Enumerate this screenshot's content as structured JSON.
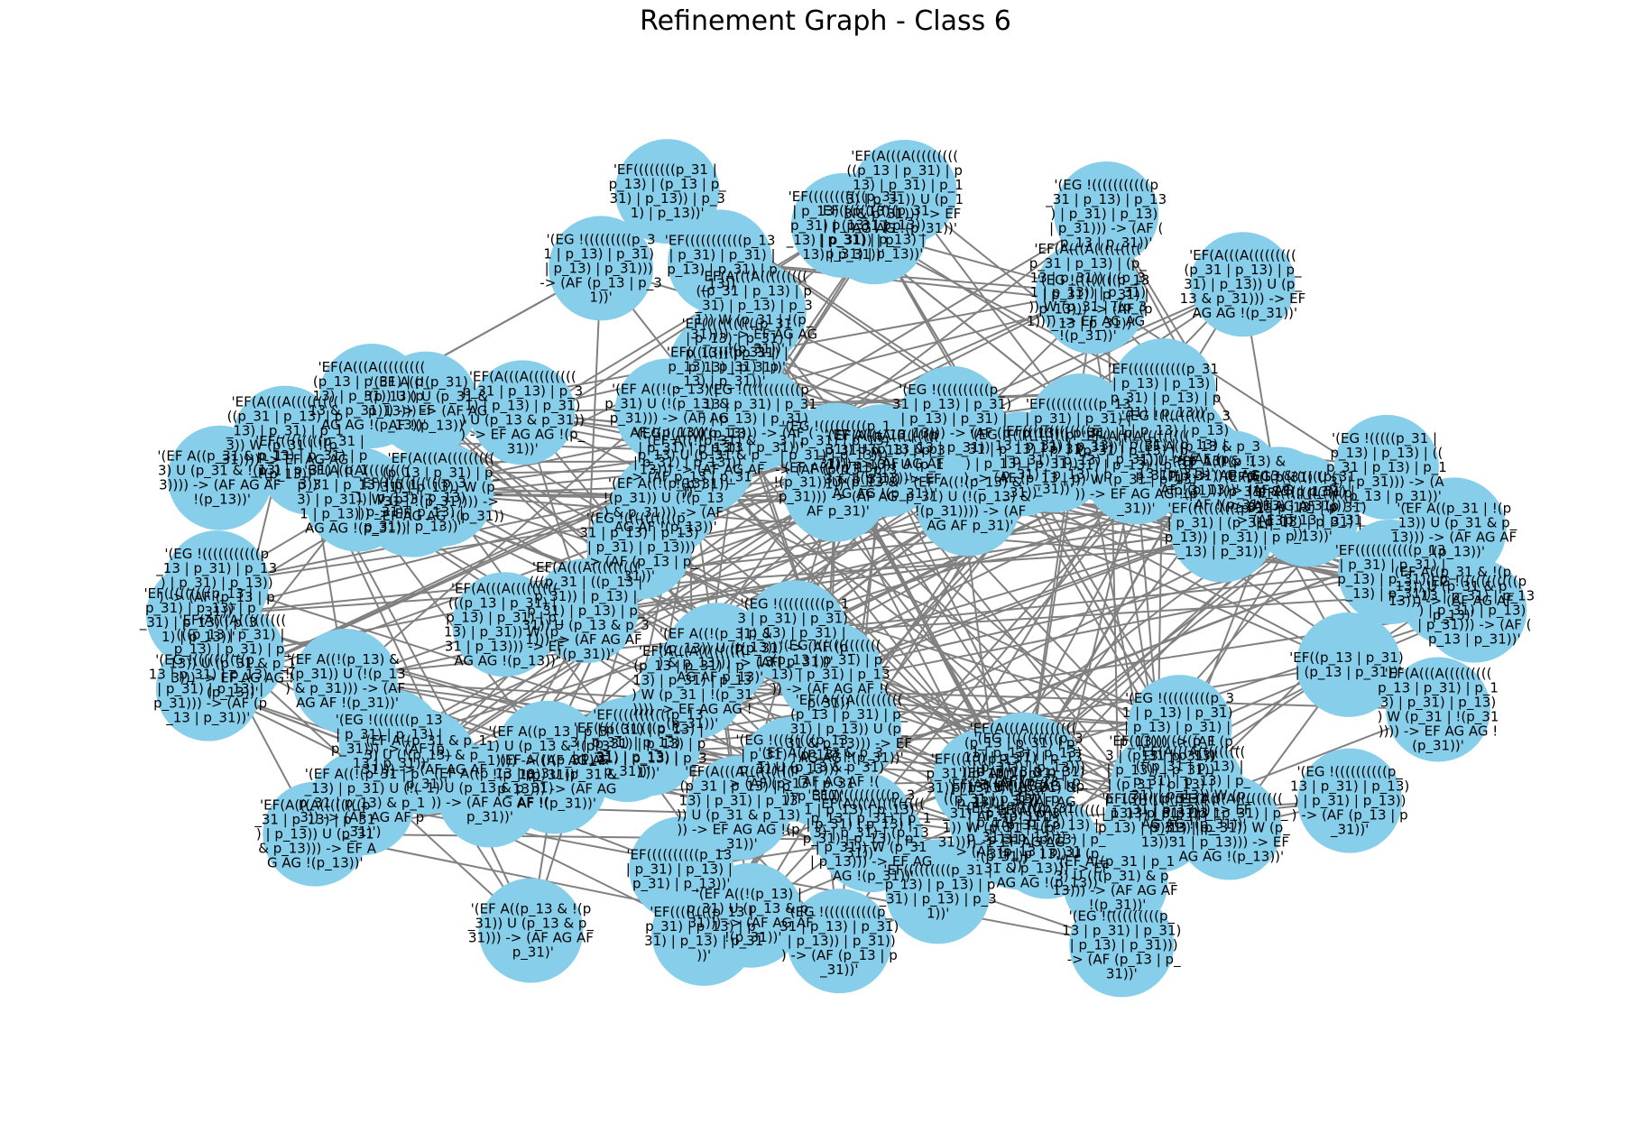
{
  "figure": {
    "title": "Refinement Graph - Class 6"
  },
  "colors": {
    "node_fill": "#87ceeb",
    "edge": "#808080",
    "label": "#000000",
    "background": "#ffffff"
  },
  "graph": {
    "directed": true,
    "nodes": [
      {
        "id": "n1",
        "label": "'EF((p_13 | p_31) | (p_13 | p_31))'"
      },
      {
        "id": "n2",
        "label": "'(EG !(((((p_31 | p_13) | p_13) | ((p_31 | p_13) | p_13) | p_31))) -> (AF (p_13 | p_31))'"
      },
      {
        "id": "n3",
        "label": "'(EF A((!(p_31 | p_13) | p_31) U (!(p_31 | p_13) & p_13)) -> (AF AG AF p_31)')"
      },
      {
        "id": "n4",
        "label": "'EF(A(((A(((((((((p_31 | p_13) | (p_13 | p_31)) | (p_31 | p_13)) | p_31))) W (p_31 | !(p_31)))) -> EF AG AG !(p_31))'"
      },
      {
        "id": "n5",
        "label": "'EF((((((((((((p_13 | (p_31 | p_13) | p_13)) | p_31)) | (p_31 | p_13) | p_13)) | p_31) | p_13) | p_31) | p_13))'"
      },
      {
        "id": "n6",
        "label": "'(EG !(((((((((((((p_13 | p_31) | p_13) | p_31) | p_13)) -> (AF AG AF !(p_31))'"
      },
      {
        "id": "n7",
        "label": "'EF(A(((A((((((((((((p_31 | ((p_13 | p_31)) | p_13) | p_31) | p_13) | p_31)) U (p_13 & p_31))) -> (AF AG AF !(p_31))'"
      },
      {
        "id": "n8",
        "label": "'(EF A(!(p_31) U (!(p_31) & !(p_13))) -> (AF AG AF !(p_13))'"
      },
      {
        "id": "n9",
        "label": "'EF(((((((p_13 | (p_31 | p_13)) | p_31)) | p_13) | p_31))'"
      },
      {
        "id": "n10",
        "label": "'(EF A((p_13 & p_31) U (p_13 & p_31))) -> (AF AG AF !(p_31))'"
      },
      {
        "id": "n11",
        "label": "'EF(A(((A(((((((((p_13 | p_31) | p_13) | p_31) | (p_13 | p_31)) W (p_31 | p_13))) -> EF AG AG !(p_31))'"
      },
      {
        "id": "n12",
        "label": "'(EG !((((((((p_13 | p_31) | p_13)) | p_31) | p_13))) -> (AF p_13 | p_31))'"
      },
      {
        "id": "n13",
        "label": "'EF(((((((((((p_31 | p_13) | p_13) | p_31) | (p_31 | p_13) | p_31)) | p_13) | p_31))'"
      },
      {
        "id": "n14",
        "label": "'(EF A((!(p_13) & !(p_31)) U (p_13 & p_31))) -> (AF AG AF !(p_31))'"
      },
      {
        "id": "n15",
        "label": "'EF(A(((A((((((((p_31 | p_13) | p_31) | p_13)) U (p_31 & p_13))) -> EF AG AG !(p_13))'"
      },
      {
        "id": "n16",
        "label": "'(EG !(((((((((p_31 | p_13) | p_13) | p_31)) | p_13))) -> (AF (p_13 | p_31))'"
      },
      {
        "id": "n17",
        "label": "'EF((((((((p_31 | p_13) | (p_13 | p_31) | p_13)) | p_31) | p_13))'"
      },
      {
        "id": "n18",
        "label": "'(EF A((!(p_13) | p_31) U (!(p_13) & p_31))) -> (AF AG AF !(p_13))'"
      },
      {
        "id": "n19",
        "label": "'EF(A(((A((((((((((p_13 | p_31) | p_13) | p_31) | p_13) W (p_31 | !(p_31)))) -> EF AG AG !(p_31))'"
      },
      {
        "id": "n20",
        "label": "'(EG !(((((((p_13 | p_31) | p_13) | p_31))) -> (AF (p_13 | p_31))'"
      },
      {
        "id": "n21",
        "label": "'EF(((((((((((p_13 | p_31) | p_13) | p_31) | p_13) | p_31) | p_13) | p_31))'"
      },
      {
        "id": "n22",
        "label": "'(EF A((p_31 & p_13) U (!(p_13) & p_31))) -> (AF AG AF p_31)'"
      },
      {
        "id": "n23",
        "label": "'EF(A(((A(((((((((p_31 | p_13) | p_31) | p_13) | p_31)) U (p_13 & p_31))) -> EF AG AG !(p_31))'"
      },
      {
        "id": "n24",
        "label": "'(EG !((((((((((p_31 | p_13) | p_31) | p_13)) | p_31))) -> (AF (p_13 | p_31))'"
      },
      {
        "id": "n25",
        "label": "'EF(((((((((((p_31 | p_13) | p_31) | p_13)) | p_31) | p_13) | p_31))'"
      },
      {
        "id": "n26",
        "label": "'(EF A((!(p_31) & !(p_13)) U (p_31 & p_13))) -> (AF AG AF !(p_31))'"
      },
      {
        "id": "n27",
        "label": "'EF(A(((A((((((((((p_13 | p_31) | p_13) | p_31)) W (p_31 | p_13))) -> EF AG AG !(p_13))'"
      },
      {
        "id": "n28",
        "label": "'(EG !(((((((((p_13 | p_31) | p_13) | p_31) | p_13))) -> (AF (p_13 | p_31))'"
      },
      {
        "id": "n29",
        "label": "'EF(((((((((p_13 | p_31) | p_13) | p_31) | p_13) | p_31) | p_13))'"
      },
      {
        "id": "n30",
        "label": "'(EF A((p_13 | p_31) U (p_13 & !(p_31)))) -> (AF AG AF !(p_31))'"
      },
      {
        "id": "n31",
        "label": "'EF(A(((A(((((((((((p_31 | p_13) | p_31) | p_13) | p_31)) W (p_31 | !(p_31)))) -> EF AG AG !(p_31))'"
      },
      {
        "id": "n32",
        "label": "'(EG !((((((((p_31 | p_13) | p_13) | p_31) | p_13))) -> (AF (p_13 | p_31))'"
      },
      {
        "id": "n33",
        "label": "'EF((((((((((p_13 | p_31) | (p_31 | p_13)) | p_31) | p_13) | p_31))'"
      },
      {
        "id": "n34",
        "label": "'(EF A((!(p_13) | !(p_31)) U (p_13 & p_31))) -> (AF AG AF p_31)'"
      },
      {
        "id": "n35",
        "label": "'EF(A(((A((((((((((p_13 | p_31) | p_13) | p_31) | p_13)) U (p_13 & p_31))) -> EF AG AG !(p_31))'"
      },
      {
        "id": "n36",
        "label": "'(EG !((((((((((p_13 | p_31) | p_13)) | p_31) | p_13))) -> (AF (p_13 | p_31))'"
      },
      {
        "id": "n37",
        "label": "'EF(((((((((((p_31 | p_13) | p_13)) | p_31) | p_13) | p_31) | p_13))'"
      },
      {
        "id": "n38",
        "label": "'(EF A((p_31 | !(p_13)) U (p_31 & p_13))) -> (AF AG AF !(p_13))'"
      },
      {
        "id": "n39",
        "label": "'EF(A(((A(((((((((p_31 | p_13) | p_13) | p_31)) W (p_31 | p_13))) -> EF AG AG !(p_31))'"
      },
      {
        "id": "n40",
        "label": "'(EG !(((((((((((p_13 | p_31) | p_13) | p_31) | p_13) | p_31))) -> (AF (p_13 | p_31))'"
      },
      {
        "id": "n41",
        "label": "'EF((((((((p_13 | p_31) | p_13) | p_31) | p_13) | p_31))'"
      },
      {
        "id": "n42",
        "label": "'(EF A((!(p_31) | p_13) U (!(p_31) & p_13))) -> (AF AG AF !(p_31))'"
      },
      {
        "id": "n43",
        "label": "'EF(A(((A((((((((((((p_31 | p_13) | p_31) | p_13) | p_31) | p_13)) U (p_31 & p_13))) -> EF AG AG !(p_13))'"
      },
      {
        "id": "n44",
        "label": "'(EG !((((((((p_13 | p_31) | p_13) | p_31) | p_13))) -> (AF (p_13 | p_31))'"
      },
      {
        "id": "n45",
        "label": "'EF(((((((((p_31 | p_13) | p_31) | p_13) | p_31) | p_13))'"
      },
      {
        "id": "n46",
        "label": "'(EF A((p_13 & p_31) U (!(p_13) & !(p_31)))) -> (AF AG AF !(p_13))'"
      },
      {
        "id": "n47",
        "label": "'EF(A(((A((((((((((p_13 | p_31) | p_31) | p_13)) W (p_31 | !(p_31)))) -> EF AG AG !(p_31))'"
      },
      {
        "id": "n48",
        "label": "'(EG !(((((((((p_31 | p_13) | p_31) | p_13) | p_31))) -> (AF (p_13 | p_31))'"
      },
      {
        "id": "n49",
        "label": "'EF(((((((((((p_13 | p_31) | p_31) | p_13) | p_31) | p_13) | p_31))'"
      },
      {
        "id": "n50",
        "label": "'(EF A((!(p_13) | p_31) U (p_13 & p_31))) -> (AF AG AF !(p_31))'"
      },
      {
        "id": "n51",
        "label": "'EF(A(((A(((((((((p_31 | p_13) | p_31) | p_13)) U (p_13 & p_31))) -> EF AG AG !(p_31))'"
      },
      {
        "id": "n52",
        "label": "'(EG !(((((((((((p_31 | p_13) | p_13) | p_31) | p_13) | p_31))) -> (AF (p_13 | p_31))'"
      },
      {
        "id": "n53",
        "label": "'EF((((((((((p_13 | p_31) | p_13) | p_31) | p_13))'"
      },
      {
        "id": "n54",
        "label": "'(EF A((p_31 & !(p_13)) U (p_31 & p_13))) -> (AF AG AF p_13)'"
      },
      {
        "id": "n55",
        "label": "'EF(A(((A((((((((((((p_13 | p_31) | p_13) | p_31) | p_13) | p_31)) W (p_31 | p_13))) -> EF AG AG !(p_13))'"
      },
      {
        "id": "n56",
        "label": "'(EG !((((((((((p_13 | p_31) | p_31) | p_13) | p_31))) -> (AF (p_13 | p_31))'"
      },
      {
        "id": "n57",
        "label": "'EF((((((((((((p_31 | p_13) | p_13) | p_31) | p_13) | p_31) | p_13))'"
      },
      {
        "id": "n58",
        "label": "'(EF A((!(p_31) & p_13) U (p_31 & p_13))) -> (AF AG AF !(p_31))'"
      },
      {
        "id": "n59",
        "label": "'EF(A(((A((((((((((p_31 | p_13) | p_13) | p_31) | p_13)) U (p_31 & p_13))) -> EF AG AG !(p_31))'"
      },
      {
        "id": "n60",
        "label": "'(EG !(((((((((p_13 | p_31) | p_31) | p_13) | p_31) | p_13))) -> (AF (p_13 | p_31))'"
      },
      {
        "id": "n61",
        "label": "'EF(((((((((((((p_13 | p_31) | p_13) | p_31) | p_13) | p_31) | p_13) | p_31))'"
      },
      {
        "id": "n62",
        "label": "'(EF A((p_13 | !(p_31)) U (p_13 & p_31))) -> (AF AG AF !(p_13))'"
      },
      {
        "id": "n63",
        "label": "'EF(A(((A(((((((((((p_31 | p_13) | p_31) | p_13) | p_31)) W (p_31 | !(p_31)))) -> EF AG AG !(p_31))'"
      },
      {
        "id": "n64",
        "label": "'(EG !((((((((p_31 | p_13) | p_31) | p_13) | p_31))) -> (AF (p_13 | p_31))'"
      },
      {
        "id": "n65",
        "label": "'EF((((((((((p_31 | p_13) | p_31) | p_13) | p_31) | p_13))'"
      },
      {
        "id": "n66",
        "label": "'(EF A((!(p_13) & p_31) U (!(p_13) & !(p_31)))) -> (AF AG AF p_31)'"
      },
      {
        "id": "n67",
        "label": "'EF(A(((A((((((((((p_13 | p_31) | p_13) | p_31)) U (p_13 & p_31))) -> EF AG AG !(p_13))'"
      },
      {
        "id": "n68",
        "label": "'(EG !(((((((((((p_13 | p_31) | p_13) | p_31) | p_13))) -> (AF (p_13 | p_31))'"
      },
      {
        "id": "n69",
        "label": "'EF(((((((((p_31 | p_13) | p_13) | p_31) | p_13) | p_31))'"
      },
      {
        "id": "n70",
        "label": "'(EF A((p_31 | p_13) U (!(p_31) & p_13))) -> (AF AG AF !(p_31))'"
      },
      {
        "id": "n71",
        "label": "'EF(A(((A((((((((((((p_31 | p_13) | p_31) | p_13) | p_31) | p_13)) W (p_31 | p_13))) -> EF AG AG !(p_31))'"
      },
      {
        "id": "n72",
        "label": "'(EG !((((((((((p_31 | p_13) | p_13) | p_31) | p_13))) -> (AF (p_13 | p_31))'"
      },
      {
        "id": "n73",
        "label": "'EF(((((((((((p_13 | p_31) | p_31) | p_13) | p_31) | p_13))'"
      },
      {
        "id": "n74",
        "label": "'(EF A((!(p_31) | !(p_13)) U (p_31 & p_13))) -> (AF AG AF !(p_13))'"
      },
      {
        "id": "n75",
        "label": "'EF(A(((A((((((((((p_13 | p_31) | p_31) | p_13)) U (p_31 & p_13))) -> EF AG AG !(p_31))'"
      },
      {
        "id": "n76",
        "label": "'(EG !(((((((((p_31 | p_13) | p_31) | p_13) | p_31) | p_13))) -> (AF (p_13 | p_31))'"
      },
      {
        "id": "n77",
        "label": "'EF((((((((((((p_13 | p_31) | p_13) | p_31) | p_13) | p_31))'"
      },
      {
        "id": "n78",
        "label": "'(EF A((p_13 & !(p_31)) U (p_13 & p_31))) -> (AF AG AF p_31)'"
      },
      {
        "id": "n79",
        "label": "'EF(A(((A(((((((((((p_31 | p_13) | p_13) | p_31) | p_13)) W (p_31 | !(p_31)))) -> EF AG AG !(p_13))'"
      },
      {
        "id": "n80",
        "label": "'(EG !((((((((p_13 | p_31) | p_31) | p_13))) -> (AF (p_13 | p_31))'"
      },
      {
        "id": "n81",
        "label": "'EF(((((((((p_31 | p_13) | p_31) | p_13) | p_31))'"
      },
      {
        "id": "n82",
        "label": "'(EF A((!(p_13) & !(p_31)) U (!(p_13) & p_31))) -> (AF AG AF !(p_31))'"
      },
      {
        "id": "n83",
        "label": "'EF(A(((A(((((((((((p_13 | p_31) | p_13) | p_31) | p_13) | p_31)) U (p_13 & p_31))) -> EF AG AG !(p_31))'"
      },
      {
        "id": "n84",
        "label": "'(EG !(((((((((((p_31 | p_13) | p_31) | p_13) | p_31))) -> (AF (p_13 | p_31))'"
      },
      {
        "id": "n85",
        "label": "'EF(((((((((((p_31 | p_13) | p_13) | p_31) | p_13) | p_31) | p_13))'"
      },
      {
        "id": "n86",
        "label": "'(EF A((p_31 & p_13) U (p_31 & !(p_13)))) -> (AF AG AF !(p_13))'"
      },
      {
        "id": "n87",
        "label": "'EF(A(((A((((((((((p_31 | p_13) | p_31) | p_13) | p_31)) W (p_31 | p_13))) -> EF AG AG !(p_31))'"
      },
      {
        "id": "n88",
        "label": "'(EG !((((((((((p_13 | p_31) | p_13) | p_31) | p_13) | p_31))) -> (AF (p_13 | p_31))'"
      },
      {
        "id": "n89",
        "label": "'EF((((((((((p_13 | p_31) | p_31) | p_13) | p_31) | p_13) | p_31))'"
      },
      {
        "id": "n90",
        "label": "'(EF A((!(p_31) & !(p_13)) U (!(p_31) & p_13))) -> (AF AG AF p_13)'"
      },
      {
        "id": "n91",
        "label": "'EF(A(((A((((((((((((p_13 | p_31) | p_13) | p_31) | p_13)) U (p_31 & p_13))) -> EF AG AG !(p_13))'"
      },
      {
        "id": "n92",
        "label": "'(EG !(((((((((p_31 | p_13) | p_13) | p_31) | p_13) | p_31))) -> (AF (p_13 | p_31))'"
      },
      {
        "id": "n93",
        "label": "'EF(((((((((((((p_31 | p_13) | p_31) | p_13) | p_31) | p_13))'"
      },
      {
        "id": "n94",
        "label": "'(EF A((p_13 | p_31) U (p_13 & p_31))) -> (AF AG AF !(p_31))'"
      },
      {
        "id": "n95",
        "label": "'EF(A(((A(((((((((p_13 | p_31) | p_13) | p_31) | p_13)) W (p_31 | !(p_31)))) -> EF AG AG !(p_31))'"
      },
      {
        "id": "n96",
        "label": "'(EG !(((((((((((p_13 | p_31) | p_31) | p_13) | p_31) | p_13))) -> (AF (p_13 | p_31))'"
      },
      {
        "id": "n97",
        "label": "'EF((((((((((((p_31 | p_13) | p_13) | p_31) | p_13) | p_31) | p_13) | p_31))'"
      },
      {
        "id": "n98",
        "label": "'(EF A((!(p_13) | !(p_31)) U (!(p_13) & p_31))) -> (AF AG AF !(p_13))'"
      },
      {
        "id": "n99",
        "label": "'EF(A(((A((((((((((p_31 | p_13) | p_31) | p_13)) U (p_13 & p_31))) -> EF AG AG !(p_31))'"
      },
      {
        "id": "n100",
        "label": "'(EG !((((((((((p_31 | p_13) | p_31) | p_13) | p_31) | p_13))) -> (AF (p_13 | p_31))'"
      }
    ]
  }
}
